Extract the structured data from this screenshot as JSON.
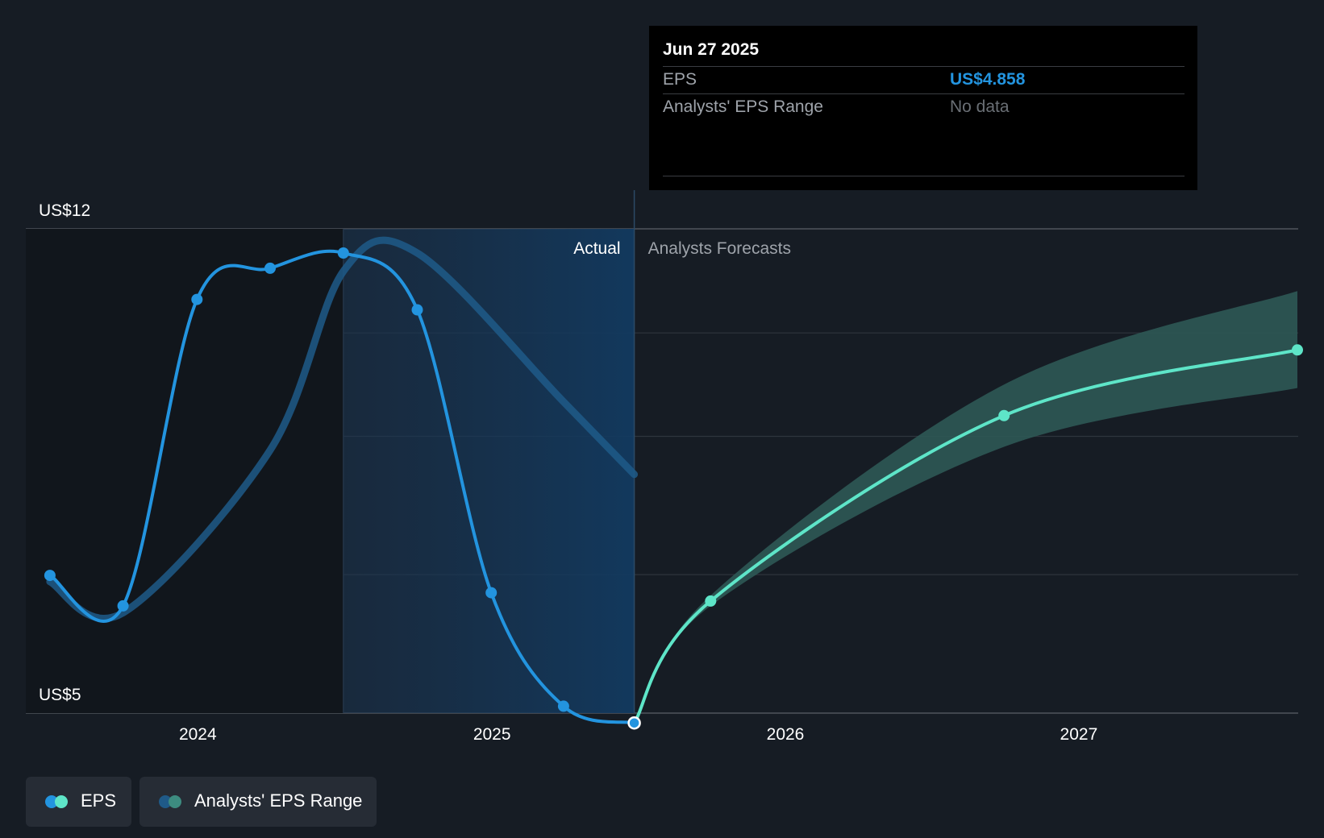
{
  "tooltip": {
    "date": "Jun 27 2025",
    "rows": [
      {
        "label": "EPS",
        "value": "US$4.858"
      },
      {
        "label": "Analysts' EPS Range",
        "value": "No data"
      }
    ]
  },
  "legend": [
    {
      "label": "EPS",
      "colors": [
        "#2394df",
        "#5ee5c8"
      ]
    },
    {
      "label": "Analysts' EPS Range",
      "colors": [
        "#1f5a88",
        "#3d8c80"
      ]
    }
  ],
  "chart_data": {
    "type": "line",
    "y_tick_labels": [
      "US$12",
      "US$5"
    ],
    "ylim": [
      5,
      12
    ],
    "xlim": [
      "2023-06-01",
      "2027-10-01"
    ],
    "x_tick_labels": [
      "2024",
      "2025",
      "2026",
      "2027"
    ],
    "section_labels": {
      "actual": "Actual",
      "forecast": "Analysts Forecasts"
    },
    "colors": {
      "eps_actual": "#2394df",
      "eps_forecast": "#5ee5c8",
      "trend": "#1f5a88",
      "range_band": "#2e5955"
    },
    "series": [
      {
        "name": "EPS",
        "points": [
          {
            "x": "2023-07-01",
            "y": 6.99
          },
          {
            "x": "2023-09-30",
            "y": 6.55
          },
          {
            "x": "2023-12-31",
            "y": 10.98
          },
          {
            "x": "2024-03-31",
            "y": 11.43
          },
          {
            "x": "2024-06-30",
            "y": 11.65
          },
          {
            "x": "2024-09-30",
            "y": 10.83
          },
          {
            "x": "2024-12-31",
            "y": 6.74
          },
          {
            "x": "2025-03-31",
            "y": 5.1
          },
          {
            "x": "2025-06-27",
            "y": 4.858
          }
        ]
      },
      {
        "name": "EPS",
        "points": [
          {
            "x": "2025-06-27",
            "y": 4.858
          },
          {
            "x": "2025-09-30",
            "y": 6.62
          },
          {
            "x": "2026-09-30",
            "y": 9.3
          },
          {
            "x": "2027-09-30",
            "y": 10.25
          }
        ]
      },
      {
        "name": "Analysts' EPS Range",
        "points": [
          {
            "x": "2025-06-27",
            "y": 4.858,
            "low": 4.858,
            "high": 4.858
          },
          {
            "x": "2025-09-30",
            "y": 6.62,
            "low": 6.55,
            "high": 6.7
          },
          {
            "x": "2026-09-30",
            "y": 9.3,
            "low": 8.85,
            "high": 9.75
          },
          {
            "x": "2027-09-30",
            "y": 10.25,
            "low": 9.7,
            "high": 11.1
          }
        ]
      },
      {
        "name": "trend",
        "points": [
          {
            "x": "2023-07-01",
            "y": 6.9
          },
          {
            "x": "2023-09-30",
            "y": 6.45
          },
          {
            "x": "2024-03-31",
            "y": 8.8
          },
          {
            "x": "2024-07-01",
            "y": 11.4
          },
          {
            "x": "2024-09-30",
            "y": 11.65
          },
          {
            "x": "2025-03-31",
            "y": 9.5
          },
          {
            "x": "2025-06-27",
            "y": 8.45
          }
        ]
      }
    ],
    "current_date": "2025-06-27",
    "actual_region_start": "2024-06-30"
  }
}
